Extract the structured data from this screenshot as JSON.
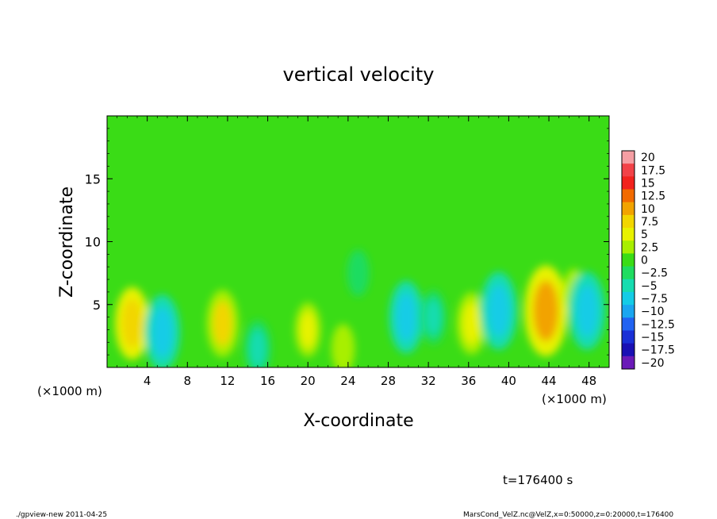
{
  "chart_data": {
    "type": "heatmap",
    "title": "vertical velocity",
    "xlabel": "X-coordinate",
    "ylabel": "Z-coordinate",
    "x_unit_label_left": "(×1000 m)",
    "x_unit_label_right": "(×1000 m)",
    "xlim": [
      0,
      50
    ],
    "ylim": [
      0,
      20
    ],
    "x_ticks": [
      4,
      8,
      12,
      16,
      20,
      24,
      28,
      32,
      36,
      40,
      44,
      48
    ],
    "y_ticks": [
      5,
      10,
      15
    ],
    "colorbar": {
      "labels": [
        "20",
        "17.5",
        "15",
        "12.5",
        "10",
        "7.5",
        "5",
        "2.5",
        "0",
        "−2.5",
        "−5",
        "−7.5",
        "−10",
        "−12.5",
        "−15",
        "−17.5",
        "−20"
      ],
      "colors": [
        "#f59ea3",
        "#f24248",
        "#f2221d",
        "#f26a00",
        "#f2a300",
        "#f2d600",
        "#e8f200",
        "#a8ef00",
        "#3adc16",
        "#1fdc60",
        "#16dcb0",
        "#14cce6",
        "#1aa6f0",
        "#2163f2",
        "#1a30d6",
        "#1a10b4",
        "#6b1ab8"
      ],
      "range": [
        -20,
        20
      ]
    },
    "field": {
      "background": 0.5,
      "features": [
        {
          "x": 2.5,
          "z": 3.5,
          "value": 7.5
        },
        {
          "x": 5.5,
          "z": 2.8,
          "value": -8.0
        },
        {
          "x": 11.5,
          "z": 3.5,
          "value": 6.5
        },
        {
          "x": 15.0,
          "z": 1.5,
          "value": -4.5
        },
        {
          "x": 20.0,
          "z": 3.0,
          "value": 4.0
        },
        {
          "x": 23.5,
          "z": 1.5,
          "value": 3.0
        },
        {
          "x": 25.0,
          "z": 7.5,
          "value": -2.5
        },
        {
          "x": 29.8,
          "z": 4.0,
          "value": -7.5
        },
        {
          "x": 32.5,
          "z": 4.0,
          "value": -4.0
        },
        {
          "x": 36.3,
          "z": 3.5,
          "value": 5.5
        },
        {
          "x": 39.0,
          "z": 4.5,
          "value": -8.5
        },
        {
          "x": 43.7,
          "z": 4.5,
          "value": 11.0
        },
        {
          "x": 46.5,
          "z": 6.0,
          "value": 2.5
        },
        {
          "x": 47.8,
          "z": 4.5,
          "value": -8.5
        }
      ]
    }
  },
  "footer": {
    "time_label": "t=176400 s",
    "left_info": "./gpview-new   2011-04-25",
    "right_info": "MarsCond_VelZ.nc@VelZ,x=0:50000,z=0:20000,t=176400"
  }
}
